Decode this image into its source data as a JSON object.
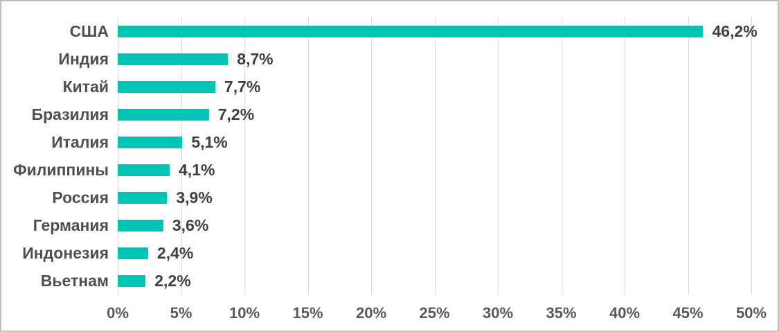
{
  "chart_data": {
    "type": "bar",
    "orientation": "horizontal",
    "title": "",
    "categories": [
      "США",
      "Индия",
      "Китай",
      "Бразилия",
      "Италия",
      "Филиппины",
      "Россия",
      "Германия",
      "Индонезия",
      "Вьетнам"
    ],
    "values": [
      46.2,
      8.7,
      7.7,
      7.2,
      5.1,
      4.1,
      3.9,
      3.6,
      2.4,
      2.2
    ],
    "value_labels": [
      "46,2%",
      "8,7%",
      "7,7%",
      "7,2%",
      "5,1%",
      "4,1%",
      "3,9%",
      "3,6%",
      "2,4%",
      "2,2%"
    ],
    "x_ticks": [
      "0%",
      "5%",
      "10%",
      "15%",
      "20%",
      "25%",
      "30%",
      "35%",
      "40%",
      "45%",
      "50%"
    ],
    "x_tick_values": [
      0,
      5,
      10,
      15,
      20,
      25,
      30,
      35,
      40,
      45,
      50
    ],
    "xlim": [
      0,
      50
    ],
    "grid": true,
    "legend": false,
    "colors": {
      "bar": "#00C5B4",
      "gridline": "#D9D9D9",
      "category_label": "#4F4F4F",
      "value_label": "#3F3F3F",
      "tick_label": "#595959",
      "frame_border": "#BFBFBF",
      "background": "#FFFFFF"
    }
  }
}
